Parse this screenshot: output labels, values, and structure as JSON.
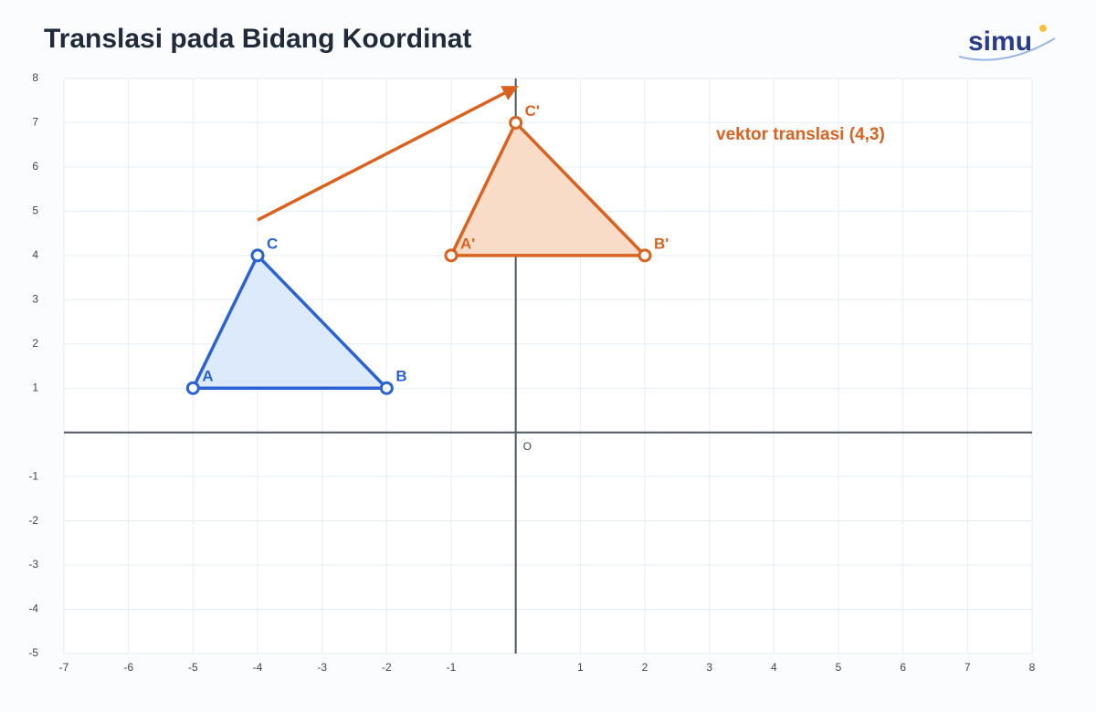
{
  "header": {
    "title": "Translasi pada Bidang Koordinat",
    "logo": "simu"
  },
  "chart_data": {
    "type": "polygon",
    "xlim": [
      -7,
      8
    ],
    "ylim": [
      -5,
      8
    ],
    "xticks": [
      -7,
      -6,
      -5,
      -4,
      -3,
      -2,
      -1,
      1,
      2,
      3,
      4,
      5,
      6,
      7,
      8
    ],
    "yticks": [
      -5,
      -4,
      -3,
      -2,
      -1,
      1,
      2,
      3,
      4,
      5,
      6,
      7,
      8
    ],
    "grid": true,
    "origin_label": "O",
    "series": [
      {
        "color": "#2b62d3",
        "fill": "#dceafb",
        "labels": [
          "A",
          "B",
          "C"
        ],
        "x": [
          -5,
          -2,
          -4
        ],
        "y": [
          1,
          1,
          4
        ]
      },
      {
        "color": "#d9621f",
        "fill": "#f9dcc7",
        "labels": [
          "A'",
          "B'",
          "C'"
        ],
        "x": [
          -1,
          2,
          0
        ],
        "y": [
          4,
          4,
          7
        ]
      }
    ],
    "annotation": {
      "text": "vektor translasi (4,3)",
      "color": "#d9621f",
      "x": [
        -4,
        0
      ],
      "y": [
        4.8,
        7.8
      ]
    }
  }
}
